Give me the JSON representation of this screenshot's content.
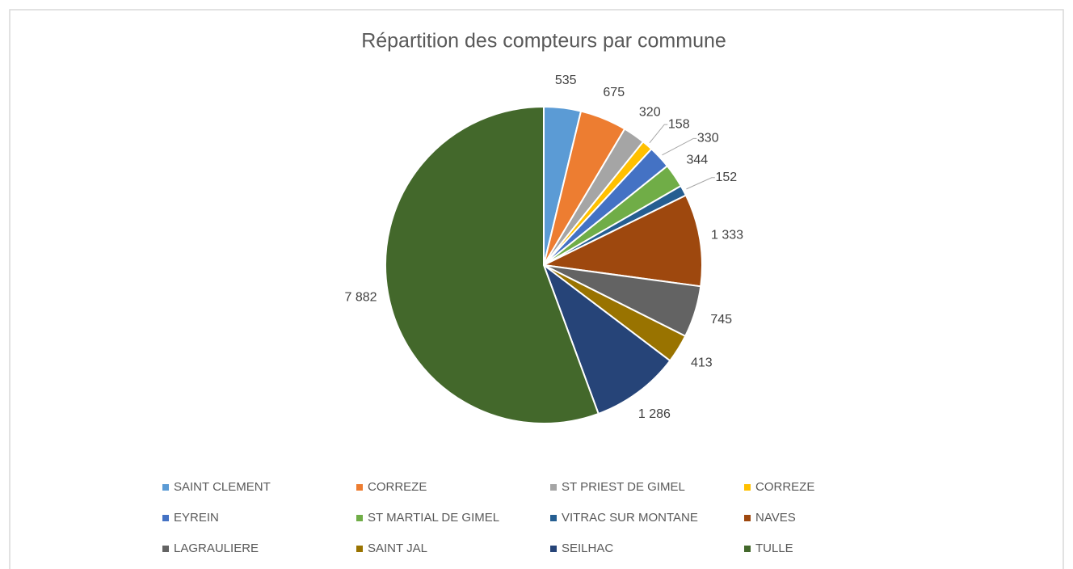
{
  "chart_data": {
    "type": "pie",
    "title": "Répartition des compteurs par commune",
    "categories": [
      "SAINT CLEMENT",
      "CORREZE",
      "ST PRIEST DE GIMEL",
      "CORREZE",
      "EYREIN",
      "ST MARTIAL DE GIMEL",
      "VITRAC SUR MONTANE",
      "NAVES",
      "LAGRAULIERE",
      "SAINT JAL",
      "SEILHAC",
      "TULLE"
    ],
    "values": [
      535,
      675,
      320,
      158,
      330,
      344,
      152,
      1333,
      745,
      413,
      1286,
      7882
    ],
    "value_labels": [
      "535",
      "675",
      "320",
      "158",
      "330",
      "344",
      "152",
      "1 333",
      "745",
      "413",
      "1 286",
      "7 882"
    ],
    "colors": [
      "#5b9bd5",
      "#ed7d31",
      "#a5a5a5",
      "#ffc000",
      "#4472c4",
      "#70ad47",
      "#255e91",
      "#9e480e",
      "#636363",
      "#997300",
      "#264478",
      "#43682b"
    ],
    "legend": "bottom"
  }
}
